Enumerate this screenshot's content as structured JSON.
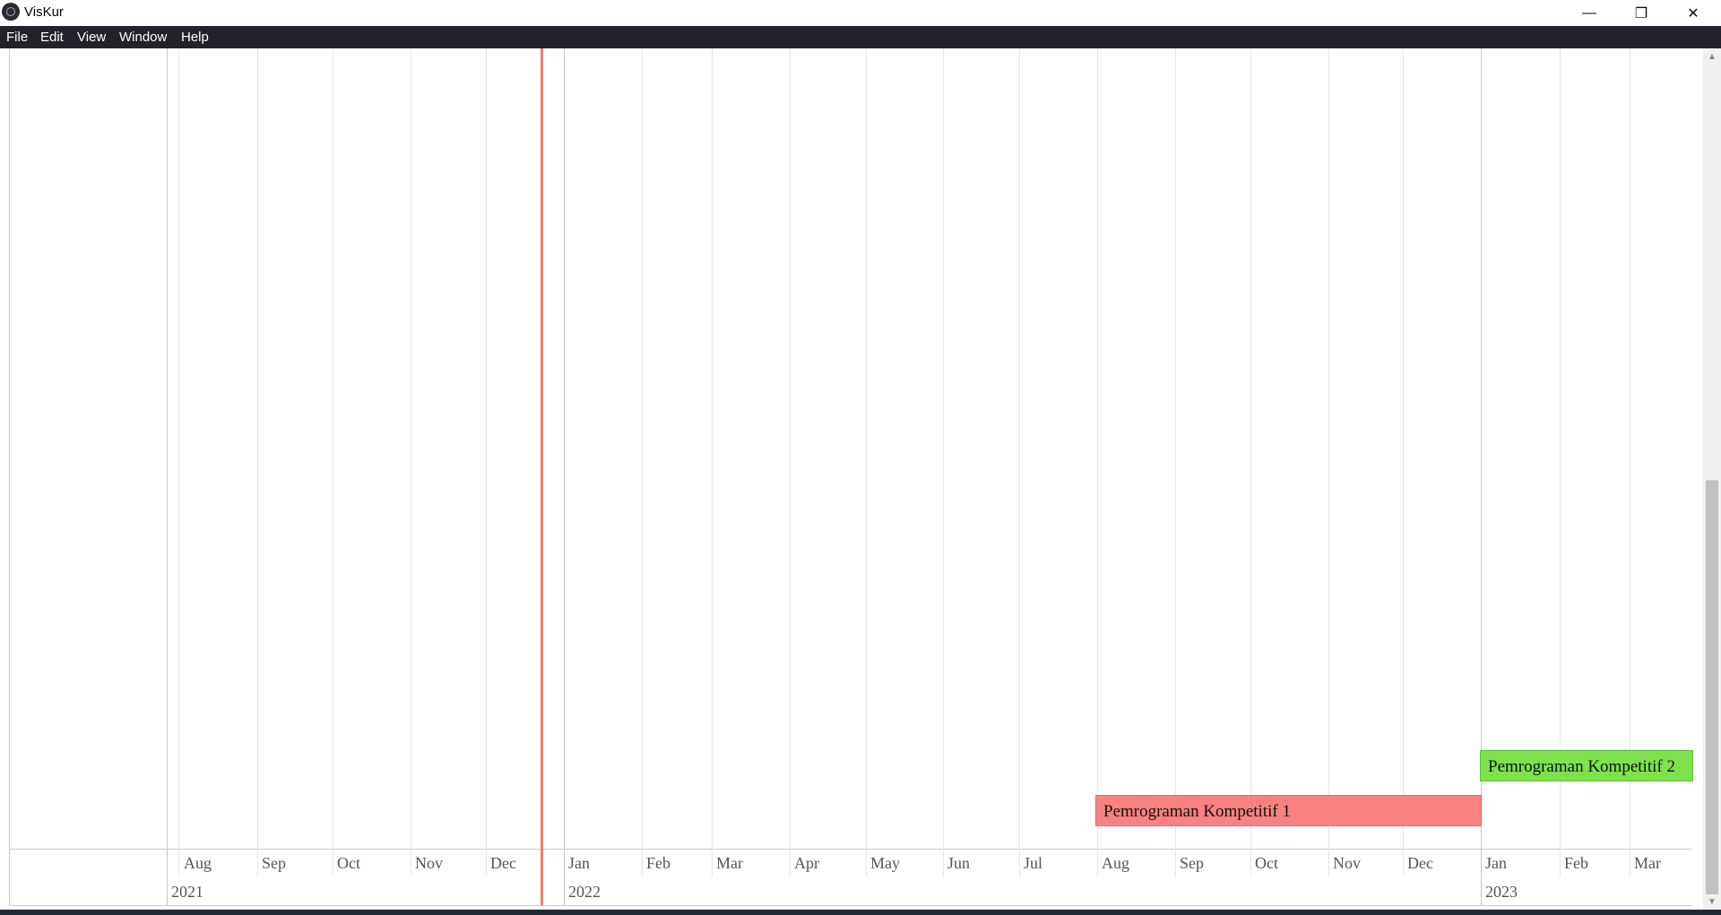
{
  "window": {
    "title": "VisKur",
    "minimize": "—",
    "restore": "❐",
    "close": "✕"
  },
  "menu": [
    "File",
    "Edit",
    "View",
    "Window",
    "Help"
  ],
  "timeline": {
    "months_2021": [
      "Aug",
      "Sep",
      "Oct",
      "Nov",
      "Dec"
    ],
    "months_2022": [
      "Jan",
      "Feb",
      "Mar",
      "Apr",
      "May",
      "Jun",
      "Jul",
      "Aug",
      "Sep",
      "Oct",
      "Nov",
      "Dec"
    ],
    "months_2023": [
      "Jan",
      "Feb",
      "Mar"
    ],
    "years": [
      "2021",
      "2022",
      "2023"
    ],
    "items": [
      {
        "label": "Pemrograman Kompetitif 1",
        "color": "#f98181"
      },
      {
        "label": "Pemrograman Kompetitif 2",
        "color": "#7de24c"
      }
    ],
    "current_time_color": "#f08070"
  },
  "scrollbar": {
    "up": "▲",
    "down": "▼"
  }
}
